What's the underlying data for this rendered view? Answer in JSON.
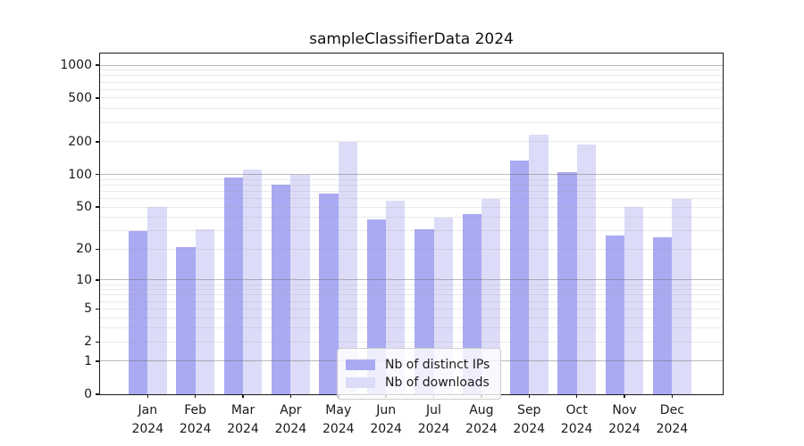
{
  "figure": {
    "background": "#ffffff",
    "spine_color": "#1a1a1a",
    "major_grid_color": "#c3c3c3",
    "minor_grid_color": "#eaeaea"
  },
  "chart_data": {
    "type": "bar",
    "title": "sampleClassifierData 2024",
    "categories": [
      "Jan 2024",
      "Feb 2024",
      "Mar 2024",
      "Apr 2024",
      "May 2024",
      "Jun 2024",
      "Jul 2024",
      "Aug 2024",
      "Sep 2024",
      "Oct 2024",
      "Nov 2024",
      "Dec 2024"
    ],
    "series": [
      {
        "name": "Nb of distinct IPs",
        "color": "#aaaaf3",
        "values": [
          30,
          21,
          93,
          80,
          67,
          38,
          31,
          43,
          135,
          105,
          27,
          26
        ]
      },
      {
        "name": "Nb of downloads",
        "color": "#dcdcf8",
        "values": [
          50,
          31,
          112,
          100,
          199,
          57,
          40,
          59,
          232,
          188,
          50,
          59
        ]
      }
    ],
    "xlabel": "",
    "ylabel": "",
    "yscale": "log1p",
    "yticks": [
      0,
      1,
      2,
      5,
      10,
      20,
      50,
      100,
      200,
      500,
      1000
    ],
    "ylim": [
      0,
      1276
    ],
    "grid": "major-and-minor",
    "legend_position": "lower-center-inside",
    "legend_entries": [
      "Nb of distinct IPs",
      "Nb of downloads"
    ]
  }
}
